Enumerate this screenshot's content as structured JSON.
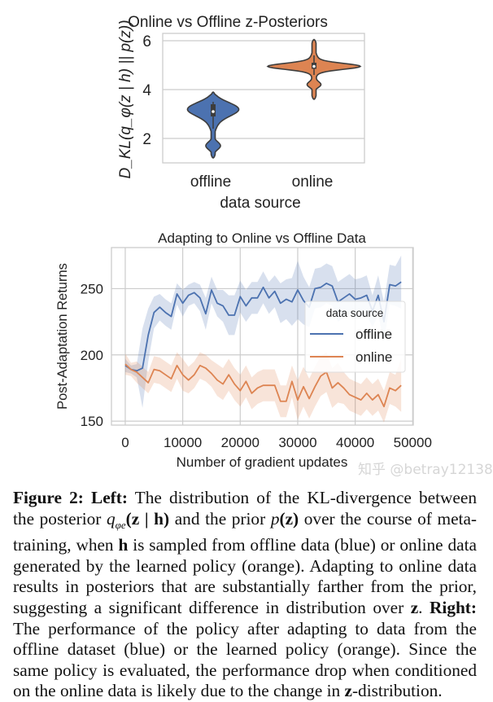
{
  "figure": {
    "caption": {
      "label": "Figure 2:",
      "left_label": "Left:",
      "text_1": "The distribution of the KL-divergence between the posterior",
      "q_symbol": "q",
      "q_subscript": "φe",
      "q_args": "(z | h)",
      "text_2": "and the prior",
      "p_symbol": "p",
      "p_args": "(z)",
      "text_3": "over the course of meta-training, when",
      "h_symbol": "h",
      "text_4": "is sampled from offline data (blue) or online data generated by the learned policy (orange). Adapting to online data results in posteriors that are substantially farther from the prior, suggesting a significant difference in distribution over",
      "z_symbol": "z",
      "text_5": ".",
      "right_label": "Right:",
      "text_6": "The performance of the policy after adapting to data from the offline dataset (blue) or the learned policy (orange).  Since the same policy is evaluated, the performance drop when conditioned on the online data is likely due to the change in",
      "z_symbol_2": "z",
      "text_7": "-distribution."
    },
    "watermark": "知乎 @betray12138"
  },
  "chart_data": [
    {
      "type": "violin",
      "title": "Online vs Offline z-Posteriors",
      "xlabel": "data source",
      "ylabel": "D_KL(q_φ(z | h) || p(z))",
      "categories": [
        "offline",
        "online"
      ],
      "yticks": [
        "2",
        "4",
        "6"
      ],
      "ylim": [
        1.0,
        6.3
      ],
      "grid": "horizontal",
      "colors": {
        "offline": "#4c72b0",
        "online": "#dd8452",
        "outline": "#3d3d3d"
      },
      "distributions": [
        {
          "name": "offline",
          "min": 1.2,
          "max": 3.9,
          "median": 3.1,
          "q1": 2.9,
          "q3": 3.4,
          "whisker_low": 2.4,
          "whisker_high": 3.5,
          "modes": [
            3.2,
            1.7
          ]
        },
        {
          "name": "online",
          "min": 3.6,
          "max": 6.05,
          "median": 4.95,
          "q1": 4.85,
          "q3": 5.1,
          "whisker_low": 4.6,
          "whisker_high": 5.4,
          "modes": [
            4.95,
            4.2
          ]
        }
      ]
    },
    {
      "type": "line",
      "title": "Adapting to Online vs Offline Data",
      "xlabel": "Number of gradient updates",
      "ylabel": "Post-Adaptation Returns",
      "xticks": [
        "0",
        "10000",
        "20000",
        "30000",
        "40000",
        "50000"
      ],
      "yticks": [
        "150",
        "200",
        "250"
      ],
      "xlim": [
        -2400,
        50100
      ],
      "ylim": [
        147,
        281
      ],
      "grid": "both",
      "legend": {
        "title": "data source",
        "placement": "center-right"
      },
      "x": [
        0,
        1000,
        2000,
        3000,
        4000,
        5000,
        6000,
        7000,
        8000,
        9000,
        10000,
        11000,
        12000,
        13000,
        14000,
        15000,
        16000,
        17000,
        18000,
        19000,
        20000,
        21000,
        22000,
        23000,
        24000,
        25000,
        26000,
        27000,
        28000,
        29000,
        30000,
        31000,
        32000,
        33000,
        34000,
        35000,
        36000,
        37000,
        38000,
        39000,
        40000,
        41000,
        42000,
        43000,
        44000,
        45000,
        46000,
        47000,
        48000
      ],
      "series": [
        {
          "name": "offline",
          "color": "#4c72b0",
          "values": [
            192,
            189,
            188,
            190,
            215,
            232,
            236,
            232,
            229,
            246,
            239,
            245,
            247,
            243,
            231,
            249,
            239,
            237,
            230,
            230,
            244,
            237,
            243,
            243,
            251,
            243,
            248,
            239,
            242,
            240,
            249,
            241,
            236,
            250,
            251,
            254,
            252,
            240,
            243,
            246,
            242,
            243,
            245,
            233,
            245,
            225,
            253,
            252,
            255
          ],
          "ci_halfwidth": [
            5,
            3,
            5,
            30,
            20,
            12,
            10,
            10,
            10,
            8,
            10,
            8,
            8,
            10,
            12,
            10,
            10,
            12,
            15,
            15,
            12,
            12,
            12,
            12,
            12,
            12,
            12,
            15,
            15,
            18,
            22,
            18,
            15,
            15,
            15,
            15,
            15,
            15,
            15,
            15,
            15,
            15,
            15,
            12,
            15,
            15,
            15,
            15,
            20
          ]
        },
        {
          "name": "online",
          "color": "#dd8452",
          "values": [
            193,
            189,
            187,
            183,
            179,
            189,
            188,
            185,
            182,
            192,
            185,
            181,
            185,
            192,
            190,
            186,
            181,
            178,
            185,
            178,
            173,
            180,
            171,
            175,
            177,
            177,
            177,
            165,
            165,
            180,
            166,
            176,
            167,
            176,
            184,
            187,
            175,
            179,
            175,
            170,
            168,
            166,
            171,
            166,
            170,
            161,
            175,
            173,
            177
          ],
          "ci_halfwidth": [
            8,
            5,
            8,
            8,
            8,
            10,
            10,
            10,
            10,
            10,
            12,
            10,
            10,
            10,
            10,
            10,
            12,
            12,
            12,
            12,
            12,
            12,
            12,
            12,
            12,
            12,
            12,
            12,
            12,
            12,
            15,
            15,
            15,
            15,
            15,
            15,
            15,
            15,
            12,
            12,
            12,
            12,
            12,
            12,
            12,
            12,
            12,
            12,
            20
          ]
        }
      ]
    }
  ]
}
